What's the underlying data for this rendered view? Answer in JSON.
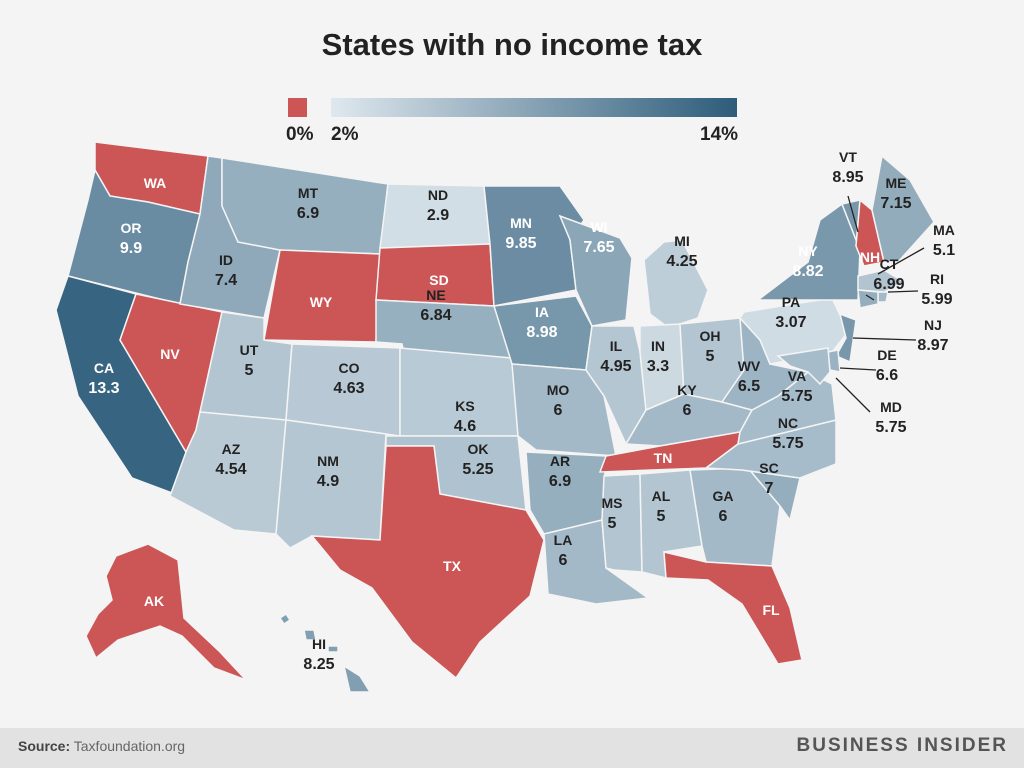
{
  "title": "States with no income tax",
  "legend": {
    "zero_label": "0%",
    "min_label": "2%",
    "max_label": "14%",
    "zero_color": "#cc5556",
    "low_color": "#dfe8ee",
    "high_color": "#2d5c7a"
  },
  "source_label": "Source:",
  "source_name": "Taxfoundation.org",
  "brand": "BUSINESS INSIDER",
  "states": [
    {
      "abbr": "WA",
      "value": null
    },
    {
      "abbr": "OR",
      "value": "9.9"
    },
    {
      "abbr": "CA",
      "value": "13.3"
    },
    {
      "abbr": "NV",
      "value": null
    },
    {
      "abbr": "ID",
      "value": "7.4"
    },
    {
      "abbr": "MT",
      "value": "6.9"
    },
    {
      "abbr": "WY",
      "value": null
    },
    {
      "abbr": "UT",
      "value": "5"
    },
    {
      "abbr": "AZ",
      "value": "4.54"
    },
    {
      "abbr": "CO",
      "value": "4.63"
    },
    {
      "abbr": "NM",
      "value": "4.9"
    },
    {
      "abbr": "ND",
      "value": "2.9"
    },
    {
      "abbr": "SD",
      "value": null
    },
    {
      "abbr": "NE",
      "value": "6.84"
    },
    {
      "abbr": "KS",
      "value": "4.6"
    },
    {
      "abbr": "OK",
      "value": "5.25"
    },
    {
      "abbr": "TX",
      "value": null
    },
    {
      "abbr": "MN",
      "value": "9.85"
    },
    {
      "abbr": "IA",
      "value": "8.98"
    },
    {
      "abbr": "MO",
      "value": "6"
    },
    {
      "abbr": "AR",
      "value": "6.9"
    },
    {
      "abbr": "LA",
      "value": "6"
    },
    {
      "abbr": "WI",
      "value": "7.65"
    },
    {
      "abbr": "IL",
      "value": "4.95"
    },
    {
      "abbr": "MI",
      "value": "4.25"
    },
    {
      "abbr": "IN",
      "value": "3.3"
    },
    {
      "abbr": "OH",
      "value": "5"
    },
    {
      "abbr": "KY",
      "value": "6"
    },
    {
      "abbr": "TN",
      "value": null
    },
    {
      "abbr": "MS",
      "value": "5"
    },
    {
      "abbr": "AL",
      "value": "5"
    },
    {
      "abbr": "GA",
      "value": "6"
    },
    {
      "abbr": "FL",
      "value": null
    },
    {
      "abbr": "SC",
      "value": "7"
    },
    {
      "abbr": "NC",
      "value": "5.75"
    },
    {
      "abbr": "VA",
      "value": "5.75"
    },
    {
      "abbr": "WV",
      "value": "6.5"
    },
    {
      "abbr": "PA",
      "value": "3.07"
    },
    {
      "abbr": "NY",
      "value": "8.82"
    },
    {
      "abbr": "VT",
      "value": "8.95"
    },
    {
      "abbr": "NH",
      "value": null
    },
    {
      "abbr": "ME",
      "value": "7.15"
    },
    {
      "abbr": "MA",
      "value": "5.1"
    },
    {
      "abbr": "RI",
      "value": "5.99"
    },
    {
      "abbr": "CT",
      "value": "6.99"
    },
    {
      "abbr": "NJ",
      "value": "8.97"
    },
    {
      "abbr": "DE",
      "value": "6.6"
    },
    {
      "abbr": "MD",
      "value": "5.75"
    },
    {
      "abbr": "AK",
      "value": null
    },
    {
      "abbr": "HI",
      "value": "8.25"
    }
  ]
}
